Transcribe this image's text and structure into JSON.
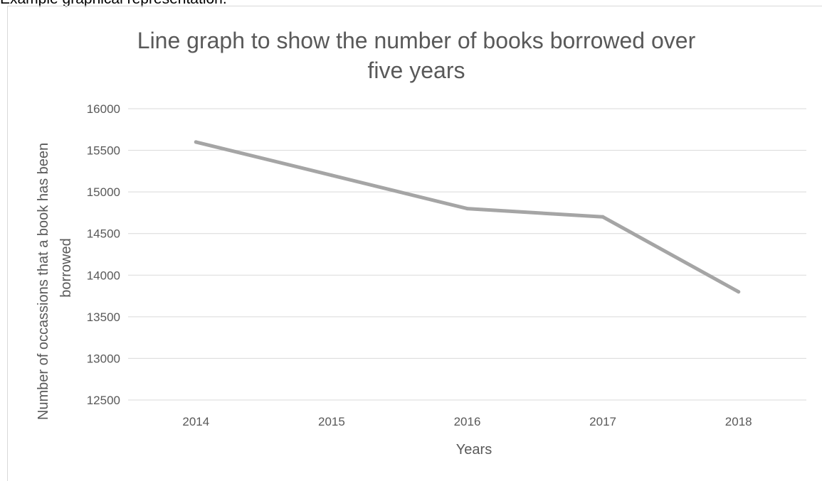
{
  "caption": "Example graphical representation.",
  "chart_data": {
    "type": "line",
    "title_lines": [
      "Line graph to show the number of books borrowed over",
      "five years"
    ],
    "xlabel": "Years",
    "ylabel_lines": [
      "Number of occassions that a book has been",
      "borrowed"
    ],
    "categories": [
      "2014",
      "2015",
      "2016",
      "2017",
      "2018"
    ],
    "series": [
      {
        "values": [
          15600,
          15200,
          14800,
          14700,
          13800
        ]
      }
    ],
    "ylim": [
      12500,
      16000
    ],
    "ytick_step": 500,
    "yticks": [
      "16000",
      "15500",
      "15000",
      "14500",
      "14000",
      "13500",
      "13000",
      "12500"
    ],
    "grid": true,
    "line_color": "#a5a5a5",
    "grid_color": "#d9d9d9"
  }
}
